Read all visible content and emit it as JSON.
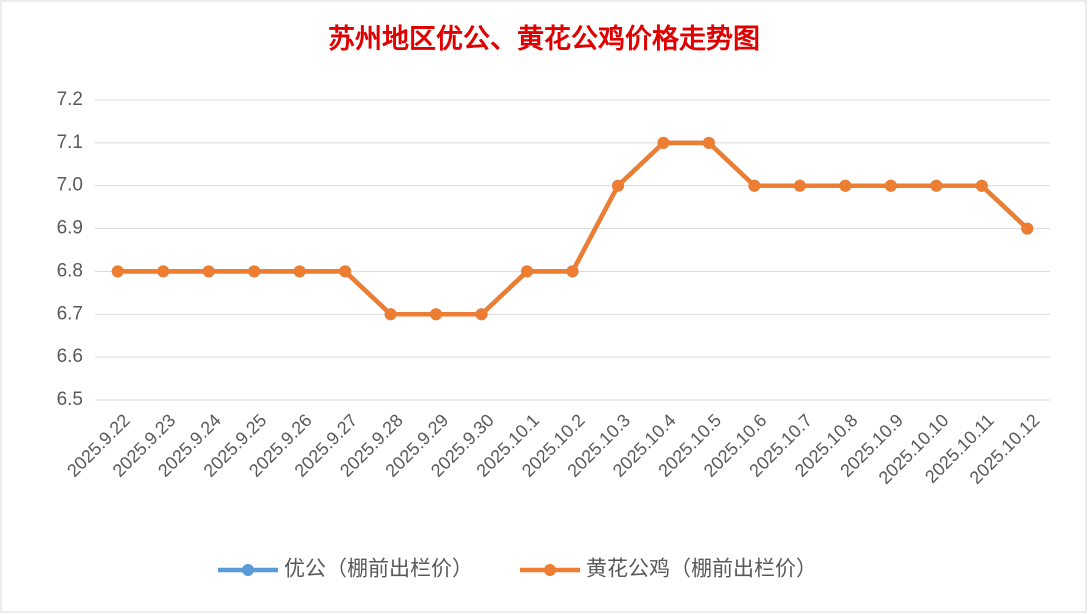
{
  "chart_data": {
    "type": "line",
    "title": "苏州地区优公、黄花公鸡价格走势图",
    "categories": [
      "2025.9.22",
      "2025.9.23",
      "2025.9.24",
      "2025.9.25",
      "2025.9.26",
      "2025.9.27",
      "2025.9.28",
      "2025.9.29",
      "2025.9.30",
      "2025.10.1",
      "2025.10.2",
      "2025.10.3",
      "2025.10.4",
      "2025.10.5",
      "2025.10.6",
      "2025.10.7",
      "2025.10.8",
      "2025.10.9",
      "2025.10.10",
      "2025.10.11",
      "2025.10.12"
    ],
    "series": [
      {
        "name": "优公（棚前出栏价）",
        "color": "#5b9bd5",
        "values": [
          6.8,
          6.8,
          6.8,
          6.8,
          6.8,
          6.8,
          6.7,
          6.7,
          6.7,
          6.8,
          6.8,
          7.0,
          7.1,
          7.1,
          7.0,
          7.0,
          7.0,
          7.0,
          7.0,
          7.0,
          6.9
        ]
      },
      {
        "name": "黄花公鸡（棚前出栏价）",
        "color": "#ed7d31",
        "values": [
          6.8,
          6.8,
          6.8,
          6.8,
          6.8,
          6.8,
          6.7,
          6.7,
          6.7,
          6.8,
          6.8,
          7.0,
          7.1,
          7.1,
          7.0,
          7.0,
          7.0,
          7.0,
          7.0,
          7.0,
          6.9
        ]
      }
    ],
    "ylim": [
      6.5,
      7.2
    ],
    "yticks": [
      6.5,
      6.6,
      6.7,
      6.8,
      6.9,
      {
        "value": 7,
        "label": "7.0"
      },
      7.1,
      7.2
    ],
    "grid": true,
    "legend": "bottom"
  }
}
